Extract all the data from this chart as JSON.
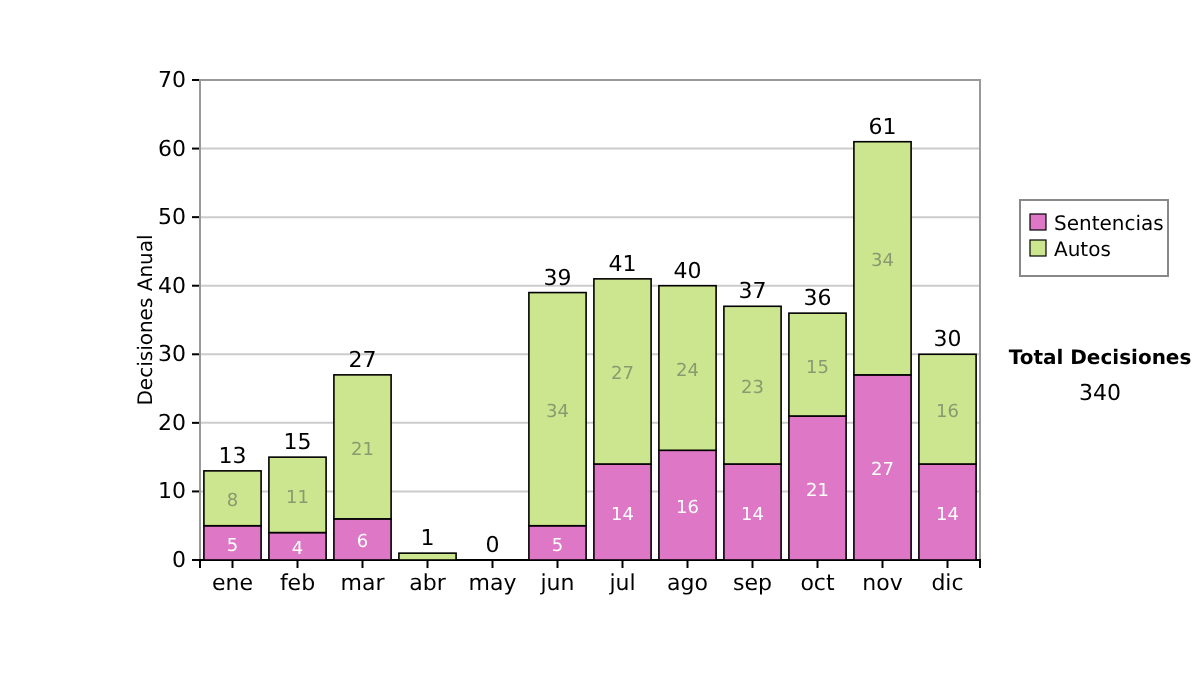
{
  "chart_data": {
    "type": "bar",
    "stacked": true,
    "ylabel": "Decisiones Anual",
    "categories": [
      "ene",
      "feb",
      "mar",
      "abr",
      "may",
      "jun",
      "jul",
      "ago",
      "sep",
      "oct",
      "nov",
      "dic"
    ],
    "series": [
      {
        "name": "Sentencias",
        "color": "#dd77c6",
        "values": [
          5,
          4,
          6,
          0,
          0,
          5,
          14,
          16,
          14,
          21,
          27,
          14
        ],
        "value_labels": [
          "5",
          "4",
          "6",
          null,
          null,
          "5",
          "14",
          "16",
          "14",
          "21",
          "27",
          "14"
        ]
      },
      {
        "name": "Autos",
        "color": "#cce68f",
        "values": [
          8,
          11,
          21,
          1,
          0,
          34,
          27,
          24,
          23,
          15,
          34,
          16
        ],
        "value_labels": [
          "8",
          "11",
          "21",
          null,
          null,
          "34",
          "27",
          "24",
          "23",
          "15",
          "34",
          "16"
        ]
      }
    ],
    "totals": [
      "13",
      "15",
      "27",
      "1",
      "0",
      "39",
      "41",
      "40",
      "37",
      "36",
      "61",
      "30"
    ],
    "ylim": [
      0,
      70
    ],
    "yticks": [
      0,
      10,
      20,
      30,
      40,
      50,
      60,
      70
    ],
    "grid": "y",
    "legend": "right",
    "annotations": [
      "Total Decisiones",
      "340"
    ]
  }
}
